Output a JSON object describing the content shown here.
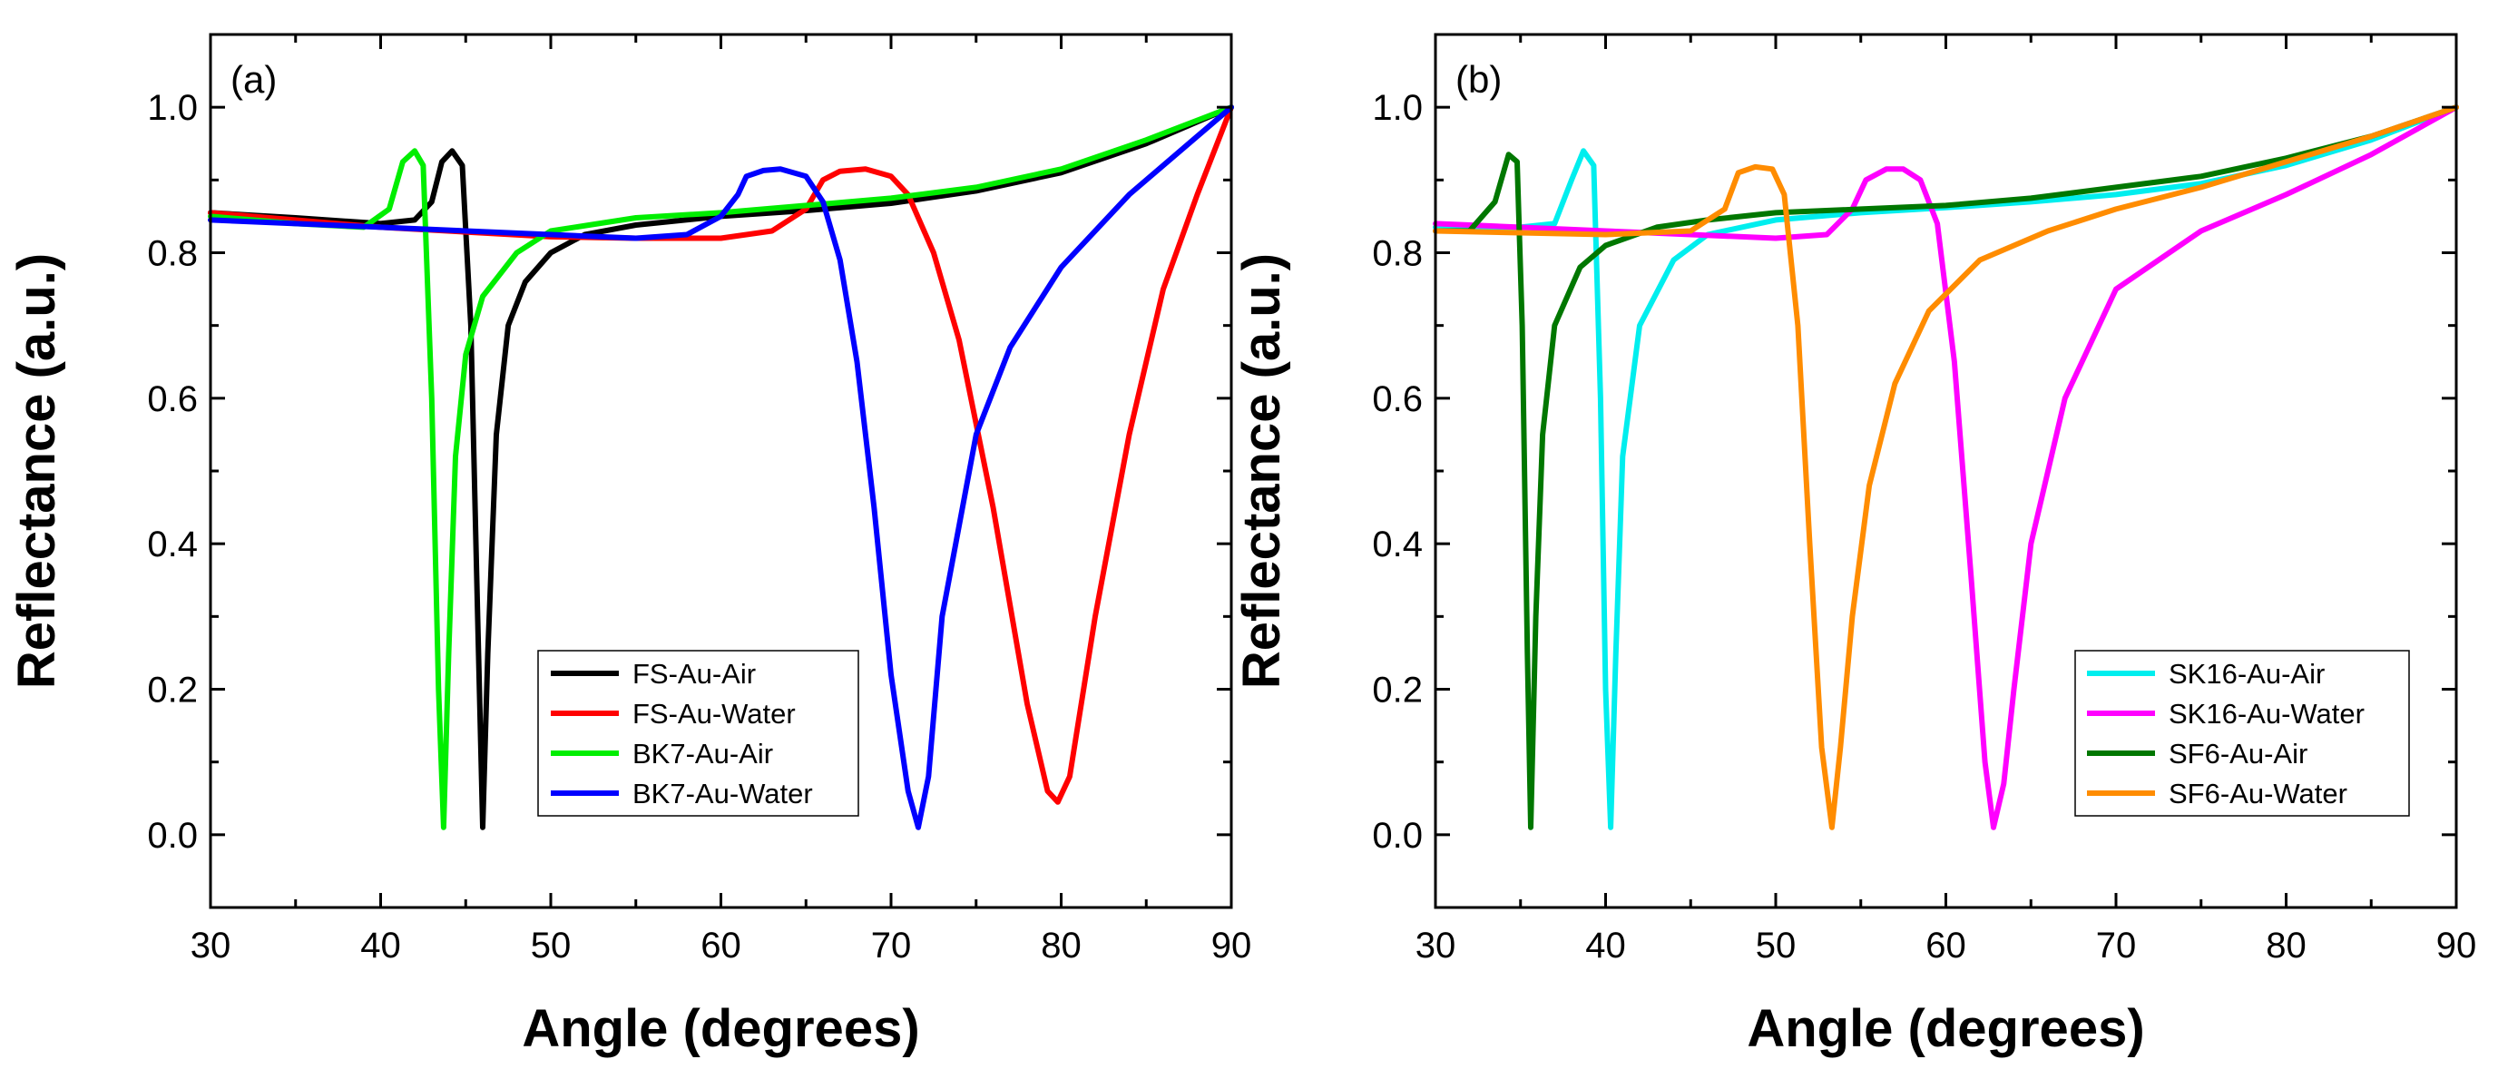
{
  "figure": {
    "panels": [
      "panel-a",
      "panel-b"
    ]
  },
  "chart_data": [
    {
      "type": "line",
      "panel_label": "(a)",
      "title": "",
      "xlabel": "Angle (degrees)",
      "ylabel": "Reflectance (a.u.)",
      "xlim": [
        30,
        90
      ],
      "ylim": [
        -0.1,
        1.1
      ],
      "xticks": [
        30,
        40,
        50,
        60,
        70,
        80,
        90
      ],
      "xtick_labels": [
        "30",
        "40",
        "50",
        "60",
        "70",
        "80",
        "90"
      ],
      "yticks": [
        0.0,
        0.2,
        0.4,
        0.6,
        0.8,
        1.0
      ],
      "ytick_labels": [
        "0.0",
        "0.2",
        "0.4",
        "0.6",
        "0.8",
        "1.0"
      ],
      "grid": false,
      "legend_position": "bottom-right",
      "series": [
        {
          "name": "FS-Au-Air",
          "color": "#000000",
          "x": [
            30,
            35,
            40,
            42,
            43,
            43.6,
            44.2,
            44.8,
            45.3,
            45.7,
            46.0,
            46.3,
            46.8,
            47.5,
            48.5,
            50,
            52,
            55,
            60,
            65,
            70,
            75,
            80,
            85,
            90
          ],
          "y": [
            0.855,
            0.848,
            0.84,
            0.845,
            0.87,
            0.925,
            0.94,
            0.92,
            0.7,
            0.3,
            0.01,
            0.25,
            0.55,
            0.7,
            0.76,
            0.8,
            0.825,
            0.838,
            0.85,
            0.858,
            0.868,
            0.885,
            0.91,
            0.95,
            1.0
          ]
        },
        {
          "name": "FS-Au-Water",
          "color": "#ff0000",
          "x": [
            30,
            40,
            50,
            55,
            60,
            63,
            65,
            66,
            67,
            68.5,
            70,
            71,
            72.5,
            74,
            76,
            78,
            79.2,
            79.8,
            80.5,
            82,
            84,
            86,
            88,
            90
          ],
          "y": [
            0.855,
            0.835,
            0.822,
            0.82,
            0.82,
            0.83,
            0.86,
            0.9,
            0.912,
            0.915,
            0.905,
            0.88,
            0.8,
            0.68,
            0.45,
            0.18,
            0.06,
            0.045,
            0.08,
            0.3,
            0.55,
            0.75,
            0.88,
            1.0
          ]
        },
        {
          "name": "BK7-Au-Air",
          "color": "#00ee00",
          "x": [
            30,
            35,
            39,
            40.5,
            41.3,
            42,
            42.5,
            43,
            43.4,
            43.7,
            44.0,
            44.4,
            45,
            46,
            48,
            50,
            55,
            60,
            65,
            70,
            75,
            80,
            85,
            90
          ],
          "y": [
            0.85,
            0.84,
            0.835,
            0.86,
            0.925,
            0.94,
            0.92,
            0.6,
            0.2,
            0.01,
            0.25,
            0.52,
            0.66,
            0.74,
            0.8,
            0.83,
            0.848,
            0.855,
            0.865,
            0.875,
            0.89,
            0.915,
            0.955,
            1.0
          ]
        },
        {
          "name": "BK7-Au-Water",
          "color": "#0000ff",
          "x": [
            30,
            40,
            50,
            55,
            58,
            60,
            61,
            61.5,
            62.5,
            63.5,
            65,
            66,
            67,
            68,
            69,
            70,
            71,
            71.6,
            72.2,
            73,
            75,
            77,
            80,
            84,
            88,
            90
          ],
          "y": [
            0.845,
            0.835,
            0.825,
            0.82,
            0.825,
            0.85,
            0.88,
            0.905,
            0.913,
            0.915,
            0.905,
            0.87,
            0.79,
            0.65,
            0.45,
            0.22,
            0.06,
            0.01,
            0.08,
            0.3,
            0.55,
            0.67,
            0.78,
            0.88,
            0.96,
            1.0
          ]
        }
      ]
    },
    {
      "type": "line",
      "panel_label": "(b)",
      "title": "",
      "xlabel": "Angle (degrees)",
      "ylabel": "Reflectance (a.u.)",
      "xlim": [
        30,
        90
      ],
      "ylim": [
        -0.1,
        1.1
      ],
      "xticks": [
        30,
        40,
        50,
        60,
        70,
        80,
        90
      ],
      "xtick_labels": [
        "30",
        "40",
        "50",
        "60",
        "70",
        "80",
        "90"
      ],
      "yticks": [
        0.0,
        0.2,
        0.4,
        0.6,
        0.8,
        1.0
      ],
      "ytick_labels": [
        "0.0",
        "0.2",
        "0.4",
        "0.6",
        "0.8",
        "1.0"
      ],
      "grid": false,
      "legend_position": "bottom-right",
      "series": [
        {
          "name": "SK16-Au-Air",
          "color": "#00eeee",
          "x": [
            30,
            35,
            37,
            38,
            38.7,
            39.3,
            39.7,
            40.0,
            40.3,
            40.6,
            41,
            42,
            44,
            46,
            50,
            55,
            60,
            65,
            70,
            75,
            80,
            85,
            90
          ],
          "y": [
            0.835,
            0.835,
            0.84,
            0.9,
            0.94,
            0.92,
            0.6,
            0.2,
            0.01,
            0.25,
            0.52,
            0.7,
            0.79,
            0.825,
            0.845,
            0.855,
            0.862,
            0.87,
            0.88,
            0.895,
            0.92,
            0.955,
            1.0
          ]
        },
        {
          "name": "SK16-Au-Water",
          "color": "#ff00ff",
          "x": [
            30,
            40,
            45,
            50,
            53,
            54.5,
            55.3,
            56.5,
            57.5,
            58.5,
            59.5,
            60.5,
            61.5,
            62.3,
            62.8,
            63.4,
            64,
            65,
            67,
            70,
            75,
            80,
            85,
            90
          ],
          "y": [
            0.84,
            0.83,
            0.825,
            0.82,
            0.825,
            0.86,
            0.9,
            0.915,
            0.915,
            0.9,
            0.84,
            0.65,
            0.35,
            0.1,
            0.01,
            0.07,
            0.2,
            0.4,
            0.6,
            0.75,
            0.83,
            0.88,
            0.935,
            1.0
          ]
        },
        {
          "name": "SF6-Au-Air",
          "color": "#007700",
          "x": [
            30,
            32,
            33.5,
            34.3,
            34.8,
            35.1,
            35.4,
            35.6,
            35.9,
            36.3,
            37,
            38.5,
            40,
            43,
            46,
            50,
            55,
            60,
            65,
            70,
            75,
            80,
            85,
            90
          ],
          "y": [
            0.83,
            0.83,
            0.87,
            0.935,
            0.925,
            0.7,
            0.25,
            0.01,
            0.3,
            0.55,
            0.7,
            0.78,
            0.81,
            0.835,
            0.845,
            0.855,
            0.86,
            0.865,
            0.875,
            0.89,
            0.905,
            0.93,
            0.96,
            1.0
          ]
        },
        {
          "name": "SF6-Au-Water",
          "color": "#ff8c00",
          "x": [
            30,
            40,
            45,
            47,
            47.8,
            48.8,
            49.8,
            50.5,
            51.3,
            52,
            52.7,
            53.3,
            53.8,
            54.5,
            55.5,
            57,
            59,
            62,
            66,
            70,
            75,
            80,
            85,
            90
          ],
          "y": [
            0.83,
            0.825,
            0.83,
            0.86,
            0.91,
            0.918,
            0.915,
            0.88,
            0.7,
            0.4,
            0.12,
            0.01,
            0.12,
            0.3,
            0.48,
            0.62,
            0.72,
            0.79,
            0.83,
            0.86,
            0.89,
            0.925,
            0.96,
            1.0
          ]
        }
      ]
    }
  ]
}
